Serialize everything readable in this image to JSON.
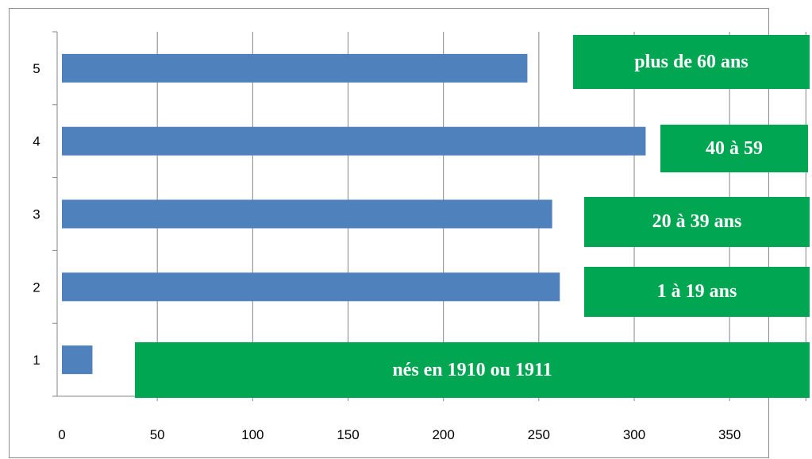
{
  "chart_data": {
    "type": "bar",
    "orientation": "horizontal",
    "categories": [
      "1",
      "2",
      "3",
      "4",
      "5"
    ],
    "values": [
      16,
      261,
      257,
      306,
      244
    ],
    "xlim": [
      0,
      390
    ],
    "xticks": [
      0,
      50,
      100,
      150,
      200,
      250,
      300,
      350
    ],
    "grid": "vertical",
    "bar_color": "#4f81bd",
    "title": "",
    "xlabel": "",
    "ylabel": "",
    "annotations": [
      {
        "category": "5",
        "text": "plus de 60 ans"
      },
      {
        "category": "4",
        "text": "40 à 59"
      },
      {
        "category": "3",
        "text": "20 à 39 ans"
      },
      {
        "category": "2",
        "text": "1 à 19 ans"
      },
      {
        "category": "1",
        "text": "nés en 1910 ou 1911"
      }
    ],
    "annotation_color": "#00a651"
  }
}
